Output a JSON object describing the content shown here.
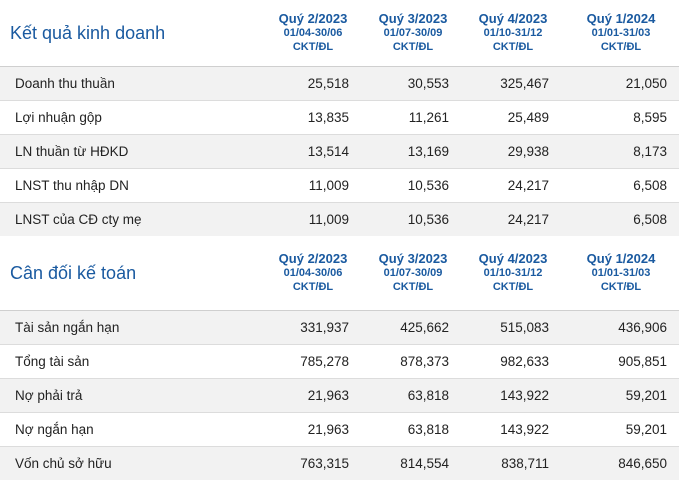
{
  "income": {
    "title": "Kết quả kinh doanh",
    "periods": [
      {
        "quarter": "Quý 2/2023",
        "range": "01/04-30/06",
        "unit": "CKT/ĐL"
      },
      {
        "quarter": "Quý 3/2023",
        "range": "01/07-30/09",
        "unit": "CKT/ĐL"
      },
      {
        "quarter": "Quý 4/2023",
        "range": "01/10-31/12",
        "unit": "CKT/ĐL"
      },
      {
        "quarter": "Quý 1/2024",
        "range": "01/01-31/03",
        "unit": "CKT/ĐL"
      }
    ],
    "rows": [
      {
        "label": "Doanh thu thuần",
        "values": [
          "25,518",
          "30,553",
          "325,467",
          "21,050"
        ]
      },
      {
        "label": "Lợi nhuận gộp",
        "values": [
          "13,835",
          "11,261",
          "25,489",
          "8,595"
        ]
      },
      {
        "label": "LN thuần từ HĐKD",
        "values": [
          "13,514",
          "13,169",
          "29,938",
          "8,173"
        ]
      },
      {
        "label": "LNST thu nhập DN",
        "values": [
          "11,009",
          "10,536",
          "24,217",
          "6,508"
        ]
      },
      {
        "label": "LNST của CĐ cty mẹ",
        "values": [
          "11,009",
          "10,536",
          "24,217",
          "6,508"
        ]
      }
    ]
  },
  "balance": {
    "title": "Cân đối kế toán",
    "periods": [
      {
        "quarter": "Quý 2/2023",
        "range": "01/04-30/06",
        "unit": "CKT/ĐL"
      },
      {
        "quarter": "Quý 3/2023",
        "range": "01/07-30/09",
        "unit": "CKT/ĐL"
      },
      {
        "quarter": "Quý 4/2023",
        "range": "01/10-31/12",
        "unit": "CKT/ĐL"
      },
      {
        "quarter": "Quý 1/2024",
        "range": "01/01-31/03",
        "unit": "CKT/ĐL"
      }
    ],
    "rows": [
      {
        "label": "Tài sản ngắn hạn",
        "values": [
          "331,937",
          "425,662",
          "515,083",
          "436,906"
        ]
      },
      {
        "label": "Tổng tài sản",
        "values": [
          "785,278",
          "878,373",
          "982,633",
          "905,851"
        ]
      },
      {
        "label": "Nợ phải trả",
        "values": [
          "21,963",
          "63,818",
          "143,922",
          "59,201"
        ]
      },
      {
        "label": "Nợ ngắn hạn",
        "values": [
          "21,963",
          "63,818",
          "143,922",
          "59,201"
        ]
      },
      {
        "label": "Vốn chủ sở hữu",
        "values": [
          "763,315",
          "814,554",
          "838,711",
          "846,650"
        ]
      }
    ]
  },
  "colors": {
    "header_text": "#1a5aa0",
    "stripe": "#f2f2f2",
    "row_border": "#dcdcdc"
  }
}
